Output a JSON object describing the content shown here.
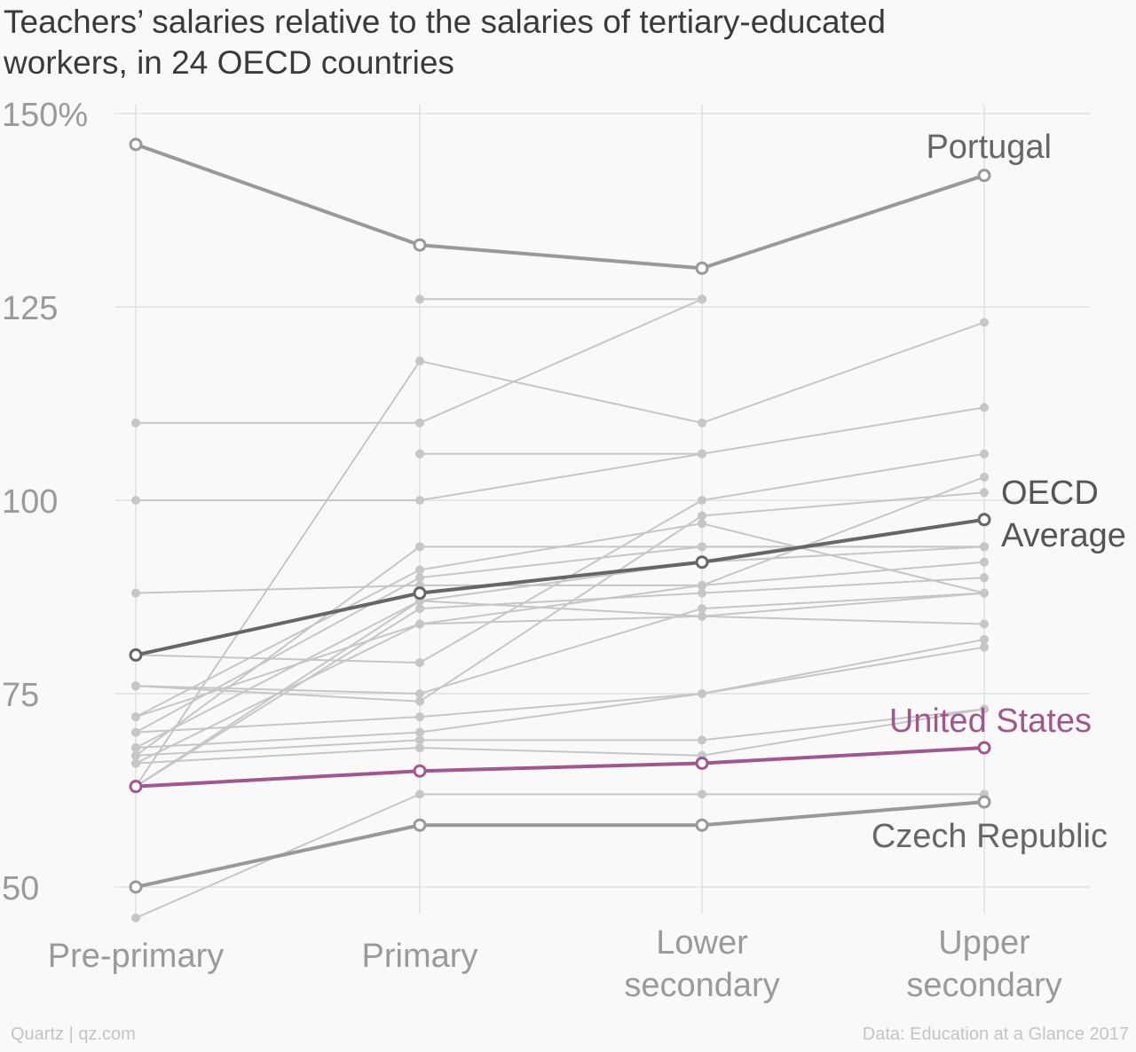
{
  "title": "Teachers’ salaries relative to the salaries of tertiary-educated workers, in 24 OECD countries",
  "footer": {
    "source": "Data: Education at a Glance 2017",
    "credit": "Quartz | qz.com"
  },
  "colors": {
    "background": "#f9f9f9",
    "grid": "#e6e6e6",
    "background_series": "#c6c6c6",
    "highlight_gray": "#999999",
    "oecd_average": "#666666",
    "united_states": "#a0578e",
    "axis_text": "#9a9a9a"
  },
  "chart_data": {
    "type": "line",
    "categories": [
      "Pre-primary",
      "Primary",
      "Lower secondary",
      "Upper secondary"
    ],
    "category_labels": [
      [
        "Pre-primary"
      ],
      [
        "Primary"
      ],
      [
        "Lower",
        "secondary"
      ],
      [
        "Upper",
        "secondary"
      ]
    ],
    "ylim": [
      45,
      150
    ],
    "yticks": [
      50,
      75,
      100,
      125,
      150
    ],
    "ytick_labels": [
      "50",
      "75",
      "100",
      "125",
      "150%"
    ],
    "grid": true,
    "highlighted_series": [
      {
        "name": "Portugal",
        "label_lines": [
          "Portugal"
        ],
        "values": [
          146,
          133,
          130,
          142
        ],
        "role": "gray"
      },
      {
        "name": "OECD Average",
        "label_lines": [
          "OECD",
          "Average"
        ],
        "values": [
          80,
          88,
          92,
          97.5
        ],
        "role": "average"
      },
      {
        "name": "United States",
        "label_lines": [
          "United States"
        ],
        "values": [
          63,
          65,
          66,
          68
        ],
        "role": "us"
      },
      {
        "name": "Czech Republic",
        "label_lines": [
          "Czech Republic"
        ],
        "values": [
          50,
          58,
          58,
          61
        ],
        "role": "gray"
      }
    ],
    "background_series": [
      [
        null,
        126,
        126
      ],
      [
        63,
        118,
        110,
        123
      ],
      [
        110,
        110,
        126
      ],
      [
        null,
        106,
        106
      ],
      [
        100,
        100,
        106,
        112
      ],
      [
        88,
        89,
        89,
        103
      ],
      [
        80,
        79,
        100,
        106
      ],
      [
        76,
        74,
        98,
        101
      ],
      [
        72,
        91,
        97,
        88
      ],
      [
        70,
        90,
        94,
        94
      ],
      [
        68,
        87,
        92,
        94
      ],
      [
        67,
        94,
        94,
        94
      ],
      [
        66,
        84,
        89,
        92
      ],
      [
        63,
        86,
        88,
        90
      ],
      [
        63,
        87,
        85,
        88
      ],
      [
        76,
        75,
        86,
        88
      ],
      [
        72,
        84,
        85,
        84
      ],
      [
        70,
        72,
        75,
        82
      ],
      [
        68,
        70,
        75,
        81
      ],
      [
        67,
        69,
        69,
        73
      ],
      [
        66,
        68,
        67,
        73
      ],
      [
        46,
        62,
        62,
        62
      ]
    ]
  }
}
